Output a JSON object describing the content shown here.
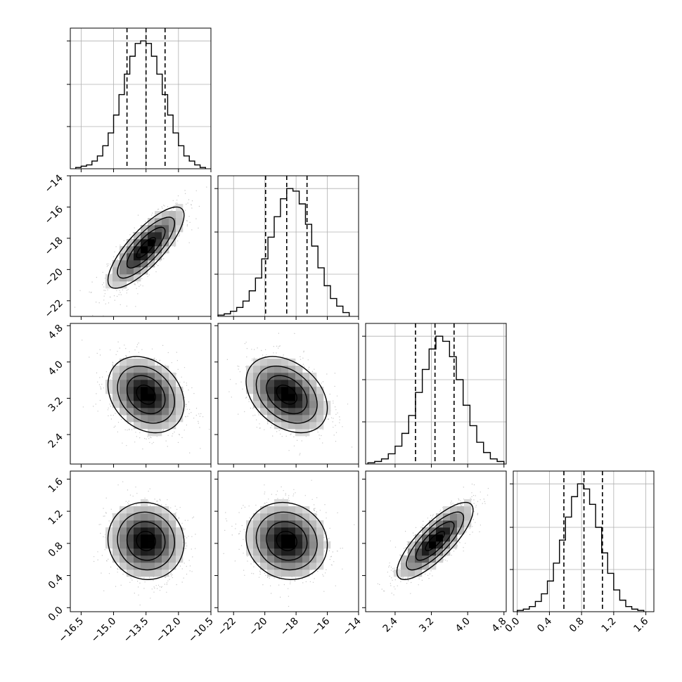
{
  "chart_data": {
    "type": "corner",
    "grid": true,
    "parameters": [
      {
        "range": [
          -17.0,
          -10.5
        ],
        "ticks": [
          -16.5,
          -15.0,
          -13.5,
          -12.0,
          -10.5
        ],
        "tick_labels": [
          "−16.5",
          "−15.0",
          "−13.5",
          "−12.0",
          "−10.5"
        ],
        "median": -13.5,
        "quantiles": [
          -14.38,
          -13.5,
          -12.62
        ],
        "std": 0.88
      },
      {
        "range": [
          -23.0,
          -14.0
        ],
        "ticks": [
          -22,
          -20,
          -18,
          -16,
          -14
        ],
        "tick_labels": [
          "−22",
          "−20",
          "−18",
          "−16",
          "−14"
        ],
        "median": -18.6,
        "quantiles": [
          -19.95,
          -18.6,
          -17.3
        ],
        "std": 1.3
      },
      {
        "range": [
          1.75,
          4.85
        ],
        "ticks": [
          2.4,
          3.2,
          4.0,
          4.8
        ],
        "tick_labels": [
          "2.4",
          "3.2",
          "4.0",
          "4.8"
        ],
        "median": 3.28,
        "quantiles": [
          2.85,
          3.28,
          3.7
        ],
        "std": 0.42
      },
      {
        "range": [
          -0.05,
          1.7
        ],
        "ticks": [
          0.0,
          0.4,
          0.8,
          1.2,
          1.6
        ],
        "tick_labels": [
          "0.0",
          "0.4",
          "0.8",
          "1.2",
          "1.6"
        ],
        "median": 0.83,
        "quantiles": [
          0.58,
          0.83,
          1.06
        ],
        "std": 0.24
      }
    ],
    "histograms": [
      {
        "param": 0,
        "bin_edges": [
          -16.75,
          -16.5,
          -16.25,
          -16.0,
          -15.75,
          -15.5,
          -15.25,
          -15.0,
          -14.75,
          -14.5,
          -14.25,
          -14.0,
          -13.75,
          -13.5,
          -13.25,
          -13.0,
          -12.75,
          -12.5,
          -12.25,
          -12.0,
          -11.75,
          -11.5,
          -11.25,
          -11.0,
          -10.75
        ],
        "counts": [
          1,
          2,
          3,
          6,
          10,
          18,
          28,
          42,
          58,
          74,
          88,
          98,
          100,
          98,
          88,
          74,
          58,
          42,
          28,
          18,
          10,
          6,
          3,
          1
        ]
      },
      {
        "param": 1,
        "bin_edges": [
          -23.0,
          -22.6,
          -22.2,
          -21.8,
          -21.4,
          -21.0,
          -20.6,
          -20.2,
          -19.8,
          -19.4,
          -19.0,
          -18.6,
          -18.2,
          -17.8,
          -17.4,
          -17.0,
          -16.6,
          -16.2,
          -15.8,
          -15.4,
          -15.0,
          -14.6
        ],
        "counts": [
          1,
          2,
          4,
          7,
          12,
          20,
          30,
          45,
          62,
          78,
          92,
          100,
          98,
          88,
          72,
          55,
          38,
          24,
          14,
          8,
          3
        ]
      },
      {
        "param": 2,
        "bin_edges": [
          1.8,
          1.95,
          2.1,
          2.25,
          2.4,
          2.55,
          2.7,
          2.85,
          3.0,
          3.15,
          3.3,
          3.45,
          3.6,
          3.75,
          3.9,
          4.05,
          4.2,
          4.35,
          4.5,
          4.65,
          4.8
        ],
        "counts": [
          1,
          2,
          4,
          8,
          14,
          24,
          38,
          56,
          74,
          90,
          100,
          96,
          84,
          66,
          46,
          30,
          17,
          9,
          4,
          2
        ]
      },
      {
        "param": 3,
        "bin_edges": [
          0.0,
          0.075,
          0.15,
          0.225,
          0.3,
          0.375,
          0.45,
          0.525,
          0.6,
          0.675,
          0.75,
          0.825,
          0.9,
          0.975,
          1.05,
          1.125,
          1.2,
          1.275,
          1.35,
          1.425,
          1.5,
          1.575
        ],
        "counts": [
          1,
          2,
          4,
          8,
          14,
          24,
          38,
          56,
          74,
          90,
          100,
          96,
          84,
          66,
          46,
          30,
          17,
          9,
          4,
          2,
          1
        ]
      }
    ],
    "pairs": [
      {
        "x": 0,
        "y": 1,
        "correlation": 0.8
      },
      {
        "x": 0,
        "y": 2,
        "correlation": -0.25
      },
      {
        "x": 1,
        "y": 2,
        "correlation": -0.35
      },
      {
        "x": 0,
        "y": 3,
        "correlation": -0.05
      },
      {
        "x": 1,
        "y": 3,
        "correlation": -0.1
      },
      {
        "x": 2,
        "y": 3,
        "correlation": 0.8
      }
    ],
    "contour_levels_sigma": [
      0.5,
      1.0,
      1.5,
      2.0
    ]
  }
}
